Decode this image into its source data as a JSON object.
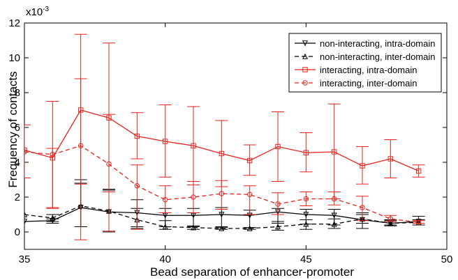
{
  "chart_data": {
    "type": "line",
    "title": "",
    "xlabel": "Bead separation of enhancer-promoter",
    "ylabel": "Frequency of contacts",
    "y_exponent_label": "x10",
    "y_exponent_value": "-3",
    "xlim": [
      35,
      50
    ],
    "ylim": [
      -1,
      12
    ],
    "xticks": [
      "35",
      "40",
      "45",
      "50"
    ],
    "yticks": [
      "0",
      "2",
      "4",
      "6",
      "8",
      "10",
      "12"
    ],
    "grid": false,
    "legend_position": "top-right",
    "x": [
      35,
      36,
      37,
      38,
      39,
      40,
      41,
      42,
      43,
      44,
      45,
      46,
      47,
      48,
      49
    ],
    "series": [
      {
        "name": "non-interacting, intra-domain",
        "color": "#000000",
        "dash": "solid",
        "marker": "triangle-down",
        "values": [
          0.6,
          0.65,
          1.4,
          1.15,
          1.1,
          0.95,
          0.95,
          1.0,
          0.95,
          1.15,
          1.0,
          0.95,
          0.7,
          0.5,
          0.6
        ],
        "err_low": [
          null,
          0.5,
          0.3,
          0.0,
          0.2,
          0.3,
          0.3,
          0.25,
          0.25,
          0.5,
          0.45,
          0.4,
          0.2,
          0.35,
          0.4
        ],
        "err_high": [
          null,
          0.75,
          2.8,
          2.4,
          1.85,
          1.35,
          1.35,
          1.4,
          1.25,
          1.35,
          1.3,
          1.3,
          1.1,
          0.7,
          0.9
        ]
      },
      {
        "name": "non-interacting, inter-domain",
        "color": "#000000",
        "dash": "dashed",
        "marker": "triangle-up",
        "values": [
          1.0,
          0.8,
          1.5,
          1.2,
          0.7,
          0.3,
          0.25,
          0.2,
          0.2,
          0.3,
          0.45,
          0.45,
          0.75,
          0.5,
          0.55
        ],
        "err_low": [
          null,
          0.6,
          0.3,
          0.0,
          0.3,
          0.15,
          0.15,
          0.15,
          0.15,
          0.1,
          0.15,
          0.2,
          0.5,
          0.4,
          0.4
        ],
        "err_high": [
          null,
          1.0,
          3.0,
          2.45,
          1.35,
          0.65,
          0.35,
          0.3,
          0.25,
          0.6,
          0.7,
          0.75,
          1.0,
          0.65,
          0.7
        ]
      },
      {
        "name": "interacting, intra-domain",
        "color": "#e8221b",
        "dash": "solid",
        "marker": "square",
        "values": [
          4.7,
          4.25,
          7.0,
          6.55,
          5.5,
          5.2,
          4.95,
          4.5,
          4.1,
          4.9,
          4.55,
          4.6,
          3.8,
          4.2,
          3.5
        ],
        "err_low": [
          null,
          1.35,
          2.75,
          2.3,
          4.2,
          3.15,
          2.7,
          2.6,
          3.25,
          2.9,
          3.45,
          1.9,
          2.75,
          3.1,
          3.15
        ],
        "err_high": [
          6.15,
          7.5,
          11.35,
          10.85,
          6.85,
          7.3,
          7.2,
          6.4,
          5.0,
          6.9,
          5.7,
          7.35,
          4.9,
          5.3,
          3.85
        ]
      },
      {
        "name": "interacting, inter-domain",
        "color": "#e8221b",
        "dash": "dashed",
        "marker": "circle",
        "values": [
          4.6,
          4.45,
          4.95,
          3.9,
          2.65,
          1.85,
          2.0,
          2.2,
          2.15,
          1.6,
          1.9,
          1.9,
          1.4,
          0.75,
          0.55
        ],
        "err_low": [
          3.1,
          1.4,
          -0.45,
          0.05,
          0.15,
          1.1,
          1.1,
          1.3,
          1.0,
          1.0,
          1.5,
          1.55,
          0.65,
          0.6,
          0.5
        ],
        "err_high": [
          null,
          4.8,
          8.8,
          6.75,
          3.85,
          2.65,
          2.9,
          2.95,
          2.65,
          2.25,
          2.3,
          2.3,
          2.05,
          0.95,
          0.65
        ]
      }
    ]
  }
}
